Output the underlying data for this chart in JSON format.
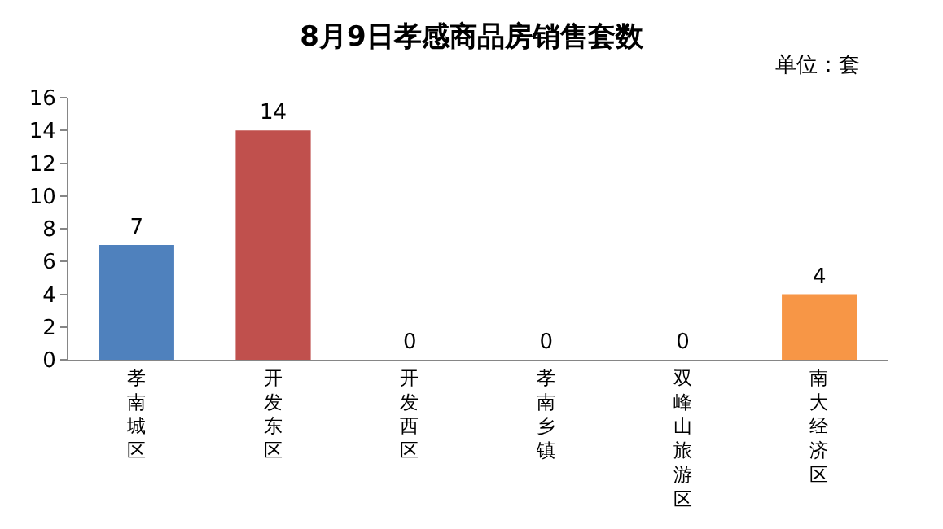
{
  "chart_data": {
    "type": "bar",
    "title": "8月9日孝感商品房销售套数",
    "annotations": [
      "单位：套"
    ],
    "categories": [
      "孝南城区",
      "开发东区",
      "开发西区",
      "孝南乡镇",
      "双峰山旅游区",
      "南大经济区"
    ],
    "values": [
      7,
      14,
      0,
      0,
      0,
      4
    ],
    "colors": [
      "#4f81bd",
      "#c0504d",
      "#9bbb59",
      "#8064a2",
      "#4bacc6",
      "#f79646"
    ],
    "ylim": [
      0,
      16
    ],
    "yticks": [
      0,
      2,
      4,
      6,
      8,
      10,
      12,
      14,
      16
    ],
    "data_labels": true
  }
}
